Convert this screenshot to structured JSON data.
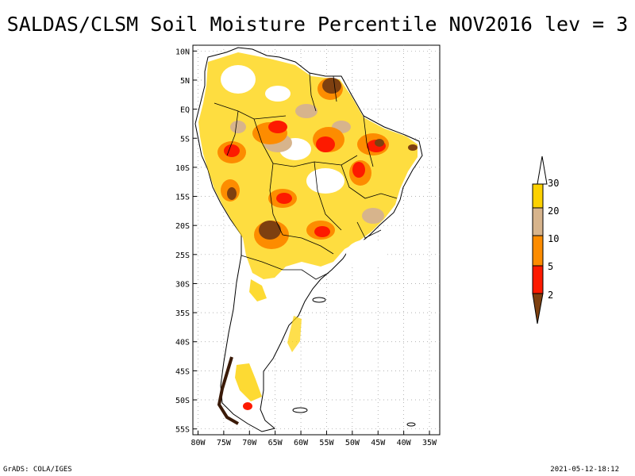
{
  "title": "SALDAS/CLSM Soil Moisture Percentile NOV2016 lev = 3",
  "map": {
    "lat_ticks": [
      "10N",
      "5N",
      "EQ",
      "5S",
      "10S",
      "15S",
      "20S",
      "25S",
      "30S",
      "35S",
      "40S",
      "45S",
      "50S",
      "55S"
    ],
    "lon_ticks": [
      "80W",
      "75W",
      "70W",
      "65W",
      "60W",
      "55W",
      "50W",
      "45W",
      "40W",
      "35W"
    ],
    "lon_range": [
      -81,
      -33
    ],
    "lat_range": [
      -56,
      11
    ]
  },
  "legend": {
    "labels": [
      "30",
      "20",
      "10",
      "5",
      "2"
    ],
    "colors": {
      "above30": "#ffffff",
      "20to30": "#fdd100",
      "10to20": "#d7b48c",
      "5to10": "#fd8c00",
      "2to5": "#fd1a00",
      "below2": "#7e4010"
    }
  },
  "footer": {
    "credit": "GrADS: COLA/IGES",
    "timestamp": "2021-05-12-18:12"
  }
}
